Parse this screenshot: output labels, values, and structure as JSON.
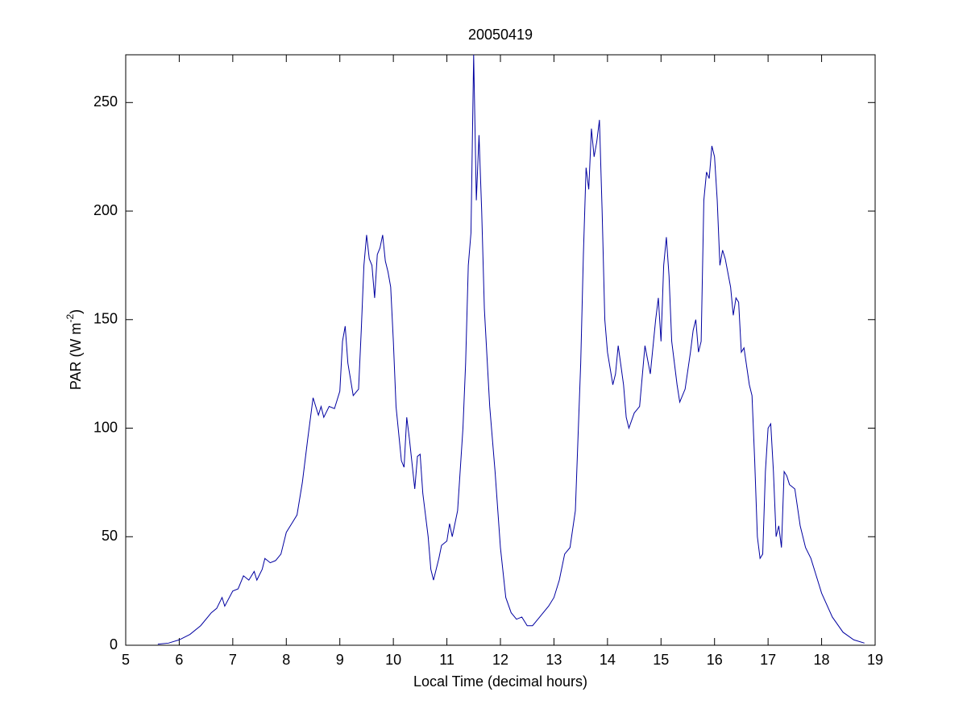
{
  "chart_data": {
    "type": "line",
    "title": "20050419",
    "xlabel": "Local Time (decimal hours)",
    "ylabel": {
      "text": "PAR (W m",
      "superscript": "-2",
      "suffix": ")"
    },
    "xlim": [
      5,
      19
    ],
    "xticks": [
      5,
      6,
      7,
      8,
      9,
      10,
      11,
      12,
      13,
      14,
      15,
      16,
      17,
      18,
      19
    ],
    "ylim": [
      0,
      272
    ],
    "yticks": [
      0,
      50,
      100,
      150,
      200,
      250
    ],
    "grid": false,
    "series": [
      {
        "color": "#0000a0",
        "x": [
          5.6,
          5.8,
          6.0,
          6.2,
          6.4,
          6.6,
          6.7,
          6.8,
          6.85,
          7.0,
          7.1,
          7.2,
          7.3,
          7.4,
          7.45,
          7.55,
          7.6,
          7.7,
          7.8,
          7.9,
          8.0,
          8.1,
          8.2,
          8.3,
          8.4,
          8.5,
          8.6,
          8.65,
          8.7,
          8.8,
          8.9,
          9.0,
          9.05,
          9.1,
          9.15,
          9.25,
          9.35,
          9.4,
          9.45,
          9.5,
          9.55,
          9.6,
          9.65,
          9.7,
          9.75,
          9.8,
          9.85,
          9.9,
          9.95,
          10.0,
          10.05,
          10.15,
          10.2,
          10.25,
          10.3,
          10.4,
          10.45,
          10.5,
          10.55,
          10.65,
          10.7,
          10.75,
          10.85,
          10.9,
          11.0,
          11.05,
          11.1,
          11.2,
          11.3,
          11.35,
          11.4,
          11.45,
          11.5,
          11.55,
          11.6,
          11.65,
          11.7,
          11.8,
          11.9,
          12.0,
          12.1,
          12.2,
          12.3,
          12.4,
          12.5,
          12.6,
          12.7,
          12.8,
          12.9,
          13.0,
          13.1,
          13.2,
          13.3,
          13.4,
          13.5,
          13.55,
          13.6,
          13.65,
          13.7,
          13.75,
          13.8,
          13.85,
          13.9,
          13.95,
          14.0,
          14.1,
          14.15,
          14.2,
          14.3,
          14.35,
          14.4,
          14.5,
          14.6,
          14.7,
          14.8,
          14.9,
          14.95,
          15.0,
          15.05,
          15.1,
          15.15,
          15.2,
          15.3,
          15.35,
          15.45,
          15.55,
          15.6,
          15.65,
          15.7,
          15.75,
          15.8,
          15.85,
          15.9,
          15.95,
          16.0,
          16.05,
          16.1,
          16.15,
          16.2,
          16.3,
          16.35,
          16.4,
          16.45,
          16.5,
          16.55,
          16.65,
          16.7,
          16.75,
          16.8,
          16.85,
          16.9,
          16.95,
          17.0,
          17.05,
          17.1,
          17.15,
          17.2,
          17.25,
          17.3,
          17.35,
          17.4,
          17.45,
          17.5,
          17.6,
          17.7,
          17.8,
          17.9,
          18.0,
          18.2,
          18.4,
          18.6,
          18.8
        ],
        "values": [
          0.5,
          1,
          2.5,
          5,
          9,
          15,
          17,
          22,
          18,
          25,
          26,
          32,
          30,
          34,
          30,
          35,
          40,
          38,
          39,
          42,
          52,
          56,
          60,
          75,
          95,
          114,
          106,
          110,
          105,
          110,
          109,
          117,
          140,
          147,
          130,
          115,
          118,
          145,
          175,
          189,
          178,
          175,
          160,
          180,
          183,
          189,
          177,
          172,
          165,
          140,
          110,
          85,
          82,
          105,
          95,
          72,
          87,
          88,
          70,
          50,
          35,
          30,
          40,
          46,
          48,
          56,
          50,
          62,
          100,
          130,
          175,
          190,
          272,
          205,
          235,
          200,
          155,
          110,
          80,
          45,
          22,
          15,
          12,
          13,
          9,
          9,
          12,
          15,
          18,
          22,
          30,
          42,
          45,
          62,
          130,
          180,
          220,
          210,
          238,
          225,
          232,
          242,
          200,
          150,
          135,
          120,
          125,
          138,
          120,
          105,
          100,
          107,
          110,
          138,
          125,
          150,
          160,
          140,
          175,
          188,
          170,
          140,
          120,
          112,
          118,
          135,
          145,
          150,
          135,
          140,
          205,
          218,
          215,
          230,
          225,
          205,
          175,
          182,
          178,
          165,
          152,
          160,
          158,
          135,
          137,
          120,
          115,
          85,
          50,
          40,
          42,
          80,
          100,
          102,
          80,
          50,
          55,
          45,
          80,
          78,
          74,
          73,
          72,
          55,
          45,
          40,
          32,
          24,
          13,
          6,
          2.5,
          1
        ]
      }
    ]
  }
}
